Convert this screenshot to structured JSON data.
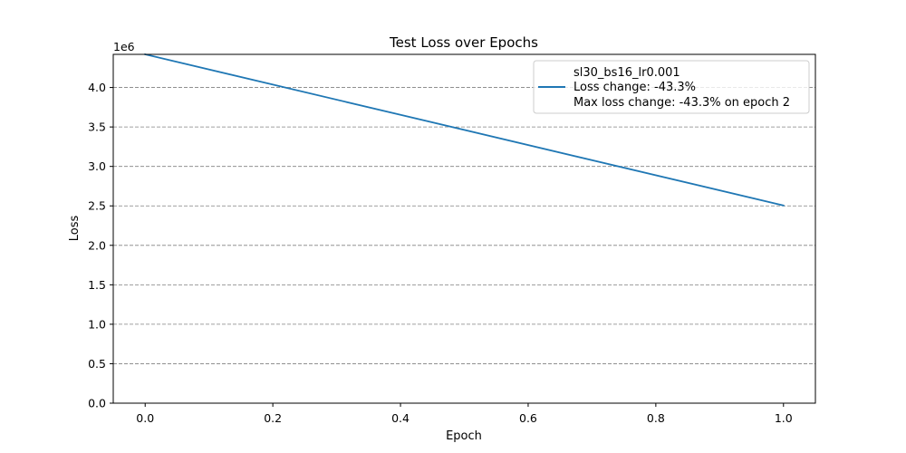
{
  "chart_data": {
    "type": "line",
    "title": "Test Loss over Epochs",
    "xlabel": "Epoch",
    "ylabel": "Loss",
    "offset_text": "1e6",
    "xlim": [
      -0.05,
      1.05
    ],
    "ylim": [
      0,
      4.42
    ],
    "xticks": [
      0.0,
      0.2,
      0.4,
      0.6,
      0.8,
      1.0
    ],
    "xtick_labels": [
      "0.0",
      "0.2",
      "0.4",
      "0.6",
      "0.8",
      "1.0"
    ],
    "yticks": [
      0.0,
      0.5,
      1.0,
      1.5,
      2.0,
      2.5,
      3.0,
      3.5,
      4.0
    ],
    "ytick_labels": [
      "0.0",
      "0.5",
      "1.0",
      "1.5",
      "2.0",
      "2.5",
      "3.0",
      "3.5",
      "4.0"
    ],
    "grid": "horizontal dashed",
    "legend_position": "top-right",
    "legend": {
      "title": "sl30_bs16_lr0.001",
      "lines": [
        "Loss change: -43.3%",
        "Max loss change: -43.3% on epoch 2"
      ]
    },
    "series": [
      {
        "color": "#1f77b4",
        "x": [
          0.0,
          1.0
        ],
        "y": [
          4.42,
          2.505
        ]
      }
    ]
  }
}
